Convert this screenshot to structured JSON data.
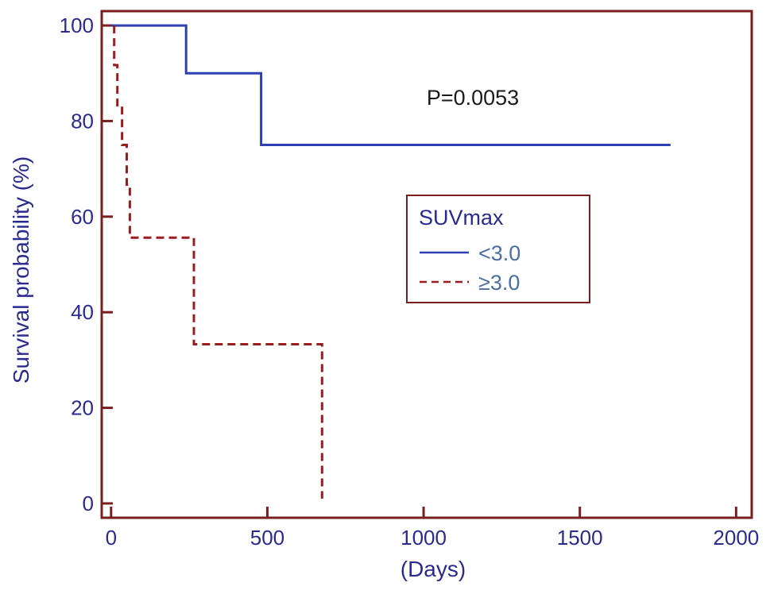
{
  "chart_data": {
    "type": "line",
    "subtype": "kaplan-meier step",
    "xlabel": "(Days)",
    "ylabel": "Survival probability (%)",
    "xlim": [
      -30,
      2050
    ],
    "ylim": [
      -3,
      103
    ],
    "xticks": [
      0,
      500,
      1000,
      1500,
      2000
    ],
    "yticks": [
      0,
      20,
      40,
      60,
      80,
      100
    ],
    "annotation": "P=0.0053",
    "legend": {
      "title": "SUVmax",
      "placement": "center-right",
      "entries": [
        "<3.0",
        "≥3.0"
      ]
    },
    "series": [
      {
        "name": "<3.0",
        "color": "#2e3fb2",
        "style": "solid",
        "x": [
          0,
          240,
          240,
          480,
          480,
          1790
        ],
        "y": [
          100,
          100,
          90,
          90,
          75,
          75
        ]
      },
      {
        "name": "≥3.0",
        "color": "#9b1c1c",
        "style": "dashed",
        "x": [
          10,
          10,
          20,
          20,
          35,
          35,
          50,
          50,
          60,
          60,
          265,
          265,
          300,
          300,
          675,
          675
        ],
        "y": [
          100,
          91.7,
          91.7,
          83.3,
          83.3,
          75,
          75,
          66.7,
          66.7,
          55.6,
          55.6,
          33.3,
          33.3,
          33.3,
          33.3,
          1
        ]
      }
    ]
  }
}
